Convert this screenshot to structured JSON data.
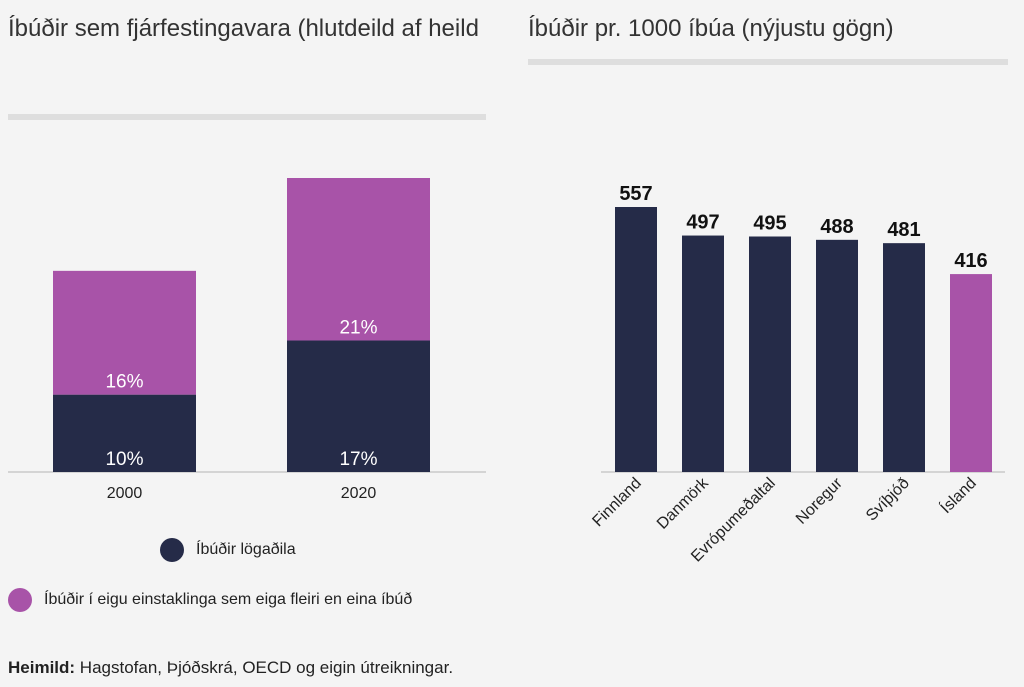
{
  "colors": {
    "navy": "#252b48",
    "purple": "#a853a8",
    "axis": "#b5b5b5"
  },
  "left_title": "Íbúðir sem fjárfestingavara (hlutdeild af heild",
  "right_title": "Íbúðir pr. 1000 íbúa (nýjustu gögn)",
  "legend": {
    "corporate": "Íbúðir lögaðila",
    "multi_owner": "Íbúðir í eigu einstaklinga sem eiga fleiri en eina íbúð"
  },
  "source": {
    "label": "Heimild:",
    "text": " Hagstofan, Þjóðskrá, OECD og eigin útreikningar."
  },
  "chart_data": [
    {
      "type": "bar",
      "stacked": true,
      "title": "Íbúðir sem fjárfestingavara (hlutdeild af heild",
      "categories": [
        "2000",
        "2020"
      ],
      "series": [
        {
          "name": "Íbúðir lögaðila",
          "values": [
            10,
            17
          ],
          "labels": [
            "10%",
            "17%"
          ],
          "color": "#252b48"
        },
        {
          "name": "Íbúðir í eigu einstaklinga sem eiga fleiri en eina íbúð",
          "values": [
            16,
            21
          ],
          "labels": [
            "16%",
            "21%"
          ],
          "color": "#a853a8"
        }
      ],
      "ylim": [
        0,
        40
      ],
      "legend": "bottom"
    },
    {
      "type": "bar",
      "title": "Íbúðir pr. 1000 íbúa (nýjustu gögn)",
      "categories": [
        "Finnland",
        "Danmörk",
        "Evrópumeðaltal",
        "Noregur",
        "Svíþjóð",
        "Ísland"
      ],
      "values": [
        557,
        497,
        495,
        488,
        481,
        416
      ],
      "labels": [
        "557",
        "497",
        "495",
        "488",
        "481",
        "416"
      ],
      "highlight": "Ísland",
      "ylim": [
        0,
        600
      ]
    }
  ]
}
